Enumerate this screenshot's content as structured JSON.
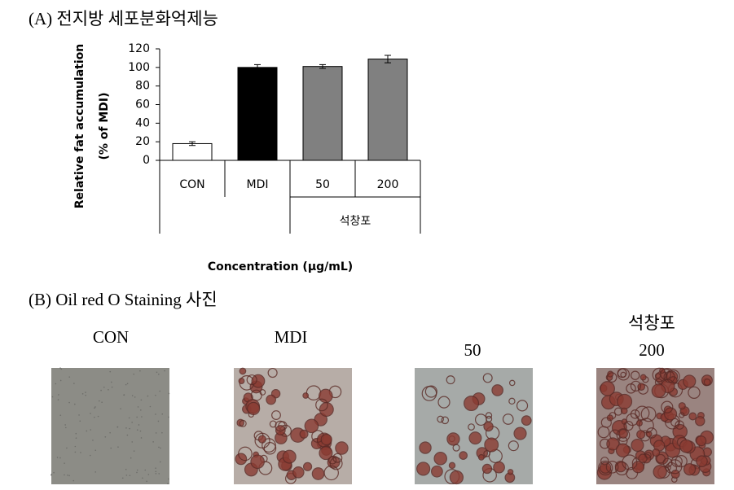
{
  "section_a_title": "(A) 전지방 세포분화억제능",
  "chart_data": {
    "type": "bar",
    "ylabel": [
      "Relative fat accumulation",
      "(% of MDI)"
    ],
    "xlabel": "Concentration (μg/mL)",
    "categories": [
      "CON",
      "MDI",
      "50",
      "200"
    ],
    "group_label": "석창포",
    "values": [
      18,
      100,
      101,
      109
    ],
    "errors": [
      2,
      3,
      2,
      4
    ],
    "colors": [
      "#ffffff",
      "#000000",
      "#808080",
      "#808080"
    ],
    "ylim": [
      0,
      120
    ],
    "yticks": [
      0,
      20,
      40,
      60,
      80,
      100,
      120
    ],
    "grid": false
  },
  "section_b_title": "(B) Oil red O Staining 사진",
  "images": [
    {
      "label": "CON"
    },
    {
      "label": "MDI"
    },
    {
      "label": "50"
    },
    {
      "group_label": "석창포",
      "label": "200"
    }
  ]
}
